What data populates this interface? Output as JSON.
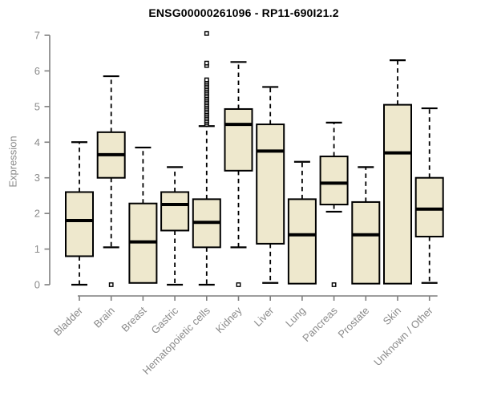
{
  "chart_data": {
    "type": "box",
    "title": "ENSG00000261096 - RP11-690I21.2",
    "ylabel": "Expression",
    "xlabel": "",
    "ylim": [
      0,
      7
    ],
    "yticks": [
      0,
      1,
      2,
      3,
      4,
      5,
      6,
      7
    ],
    "grid": false,
    "legend": "none",
    "categories": [
      "Bladder",
      "Brain",
      "Breast",
      "Gastric",
      "Hematopoietic cells",
      "Kidney",
      "Liver",
      "Lung",
      "Pancreas",
      "Prostate",
      "Skin",
      "Unknown / Other"
    ],
    "boxes": [
      {
        "label": "Bladder",
        "whisker_low": 0.0,
        "q1": 0.8,
        "median": 1.8,
        "q3": 2.6,
        "whisker_high": 4.0,
        "outliers": []
      },
      {
        "label": "Brain",
        "whisker_low": 1.05,
        "q1": 3.0,
        "median": 3.65,
        "q3": 4.28,
        "whisker_high": 5.85,
        "outliers": [
          0
        ]
      },
      {
        "label": "Breast",
        "whisker_low": 0.05,
        "q1": 0.05,
        "median": 1.2,
        "q3": 2.28,
        "whisker_high": 3.85,
        "outliers": []
      },
      {
        "label": "Gastric",
        "whisker_low": 0.0,
        "q1": 1.52,
        "median": 2.25,
        "q3": 2.6,
        "whisker_high": 3.3,
        "outliers": []
      },
      {
        "label": "Hematopoietic cells",
        "whisker_low": 0.0,
        "q1": 1.05,
        "median": 1.75,
        "q3": 2.4,
        "whisker_high": 4.45,
        "outliers": [
          4.5,
          4.55,
          4.6,
          4.65,
          4.7,
          4.75,
          4.8,
          4.85,
          4.9,
          4.95,
          5.0,
          5.05,
          5.1,
          5.15,
          5.2,
          5.25,
          5.3,
          5.35,
          5.4,
          5.45,
          5.5,
          5.55,
          5.6,
          5.65,
          5.7,
          5.75,
          6.15,
          6.22,
          7.05
        ]
      },
      {
        "label": "Kidney",
        "whisker_low": 1.05,
        "q1": 3.2,
        "median": 4.5,
        "q3": 4.93,
        "whisker_high": 6.25,
        "outliers": [
          0
        ]
      },
      {
        "label": "Liver",
        "whisker_low": 0.05,
        "q1": 1.15,
        "median": 3.75,
        "q3": 4.5,
        "whisker_high": 5.55,
        "outliers": []
      },
      {
        "label": "Lung",
        "whisker_low": 0.03,
        "q1": 0.03,
        "median": 1.4,
        "q3": 2.4,
        "whisker_high": 3.45,
        "outliers": []
      },
      {
        "label": "Pancreas",
        "whisker_low": 2.05,
        "q1": 2.25,
        "median": 2.85,
        "q3": 3.6,
        "whisker_high": 4.55,
        "outliers": [
          0
        ]
      },
      {
        "label": "Prostate",
        "whisker_low": 0.03,
        "q1": 0.03,
        "median": 1.4,
        "q3": 2.32,
        "whisker_high": 3.3,
        "outliers": []
      },
      {
        "label": "Skin",
        "whisker_low": 0.03,
        "q1": 0.03,
        "median": 3.7,
        "q3": 5.05,
        "whisker_high": 6.3,
        "outliers": []
      },
      {
        "label": "Unknown / Other",
        "whisker_low": 0.05,
        "q1": 1.35,
        "median": 2.12,
        "q3": 3.0,
        "whisker_high": 4.95,
        "outliers": []
      }
    ],
    "colors": {
      "box_fill": "#EEE8CD",
      "box_stroke": "#000000",
      "median": "#000000",
      "whisker": "#000000",
      "outlier_fill": "#ffffff",
      "axis": "#7f7f7f",
      "tick_label": "#8a8a8a",
      "title": "#000000",
      "background": "#ffffff"
    }
  }
}
